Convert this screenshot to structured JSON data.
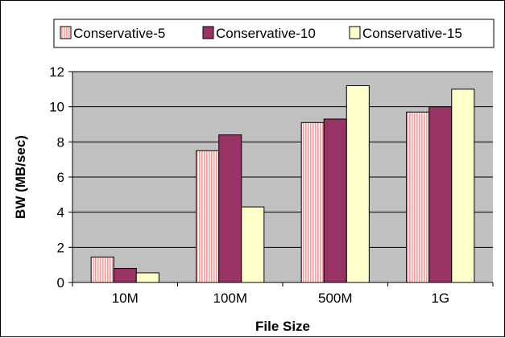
{
  "chart_data": {
    "type": "bar",
    "categories": [
      "10M",
      "100M",
      "500M",
      "1G"
    ],
    "series": [
      {
        "name": "Conservative-5",
        "values": [
          1.45,
          7.5,
          9.1,
          9.7
        ],
        "color": "#ff9999",
        "pattern": "vertical-stripes"
      },
      {
        "name": "Conservative-10",
        "values": [
          0.8,
          8.4,
          9.3,
          10.0
        ],
        "color": "#993366",
        "pattern": "solid"
      },
      {
        "name": "Conservative-15",
        "values": [
          0.55,
          4.3,
          11.2,
          11.0
        ],
        "color": "#ffffcc",
        "pattern": "solid"
      }
    ],
    "xlabel": "File Size",
    "ylabel": "BW (MB/sec)",
    "ylim": [
      0,
      12
    ],
    "yticks": [
      "0",
      "2",
      "4",
      "6",
      "8",
      "10",
      "12"
    ],
    "grid": true,
    "plot_background": "#c0c0c0",
    "legend_position": "top"
  }
}
